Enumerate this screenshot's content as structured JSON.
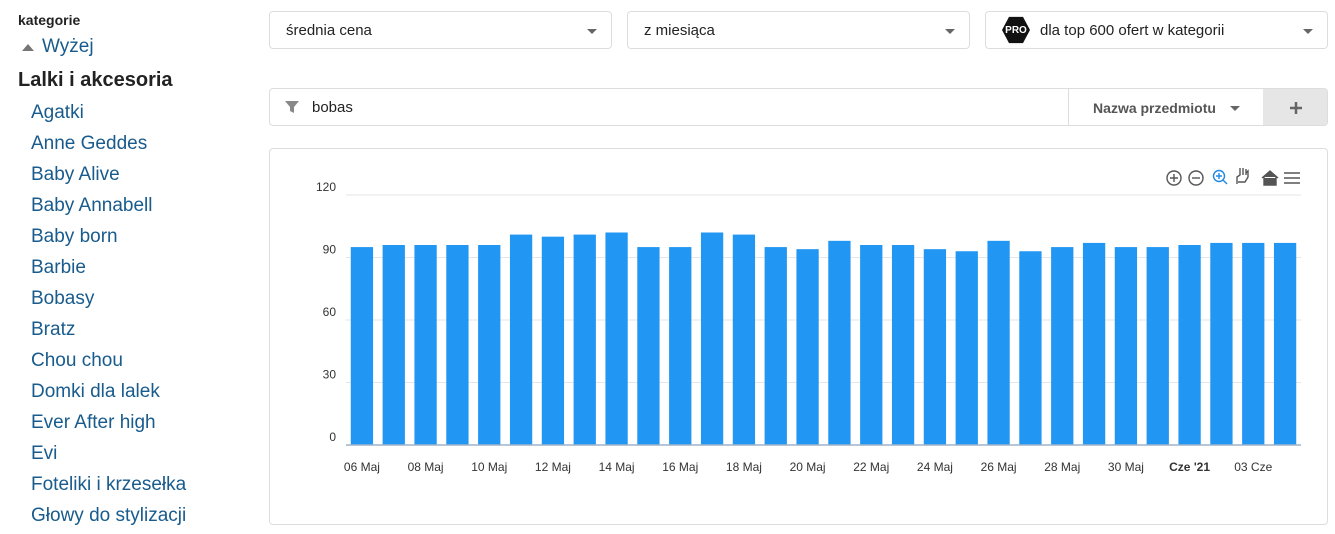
{
  "sidebar": {
    "heading": "kategorie",
    "up": "Wyżej",
    "current": "Lalki i akcesoria",
    "items": [
      "Agatki",
      "Anne Geddes",
      "Baby Alive",
      "Baby Annabell",
      "Baby born",
      "Barbie",
      "Bobasy",
      "Bratz",
      "Chou chou",
      "Domki dla lalek",
      "Ever After high",
      "Evi",
      "Foteliki i krzesełka",
      "Głowy do stylizacji"
    ]
  },
  "controls": {
    "metric": "średnia cena",
    "period": "z miesiąca",
    "pro_badge": "PRO",
    "scope": "dla top 600 ofert w kategorii"
  },
  "filter": {
    "query": "bobas",
    "field": "Nazwa przedmiotu"
  },
  "chart_data": {
    "type": "bar",
    "categories": [
      "06 Maj",
      null,
      "08 Maj",
      null,
      "10 Maj",
      null,
      "12 Maj",
      null,
      "14 Maj",
      null,
      "16 Maj",
      null,
      "18 Maj",
      null,
      "20 Maj",
      null,
      "22 Maj",
      null,
      "24 Maj",
      null,
      "26 Maj",
      null,
      "28 Maj",
      null,
      "30 Maj",
      null,
      "Cze '21",
      null,
      "03 Cze",
      null
    ],
    "values": [
      95,
      96,
      96,
      96,
      96,
      101,
      100,
      101,
      102,
      95,
      95,
      102,
      101,
      95,
      94,
      98,
      96,
      96,
      94,
      93,
      98,
      93,
      95,
      97,
      95,
      95,
      96,
      97,
      97,
      97
    ],
    "color": "#2196f3",
    "ylim": [
      0,
      120
    ],
    "yticks": [
      0,
      30,
      60,
      90,
      120
    ],
    "grid": true
  }
}
